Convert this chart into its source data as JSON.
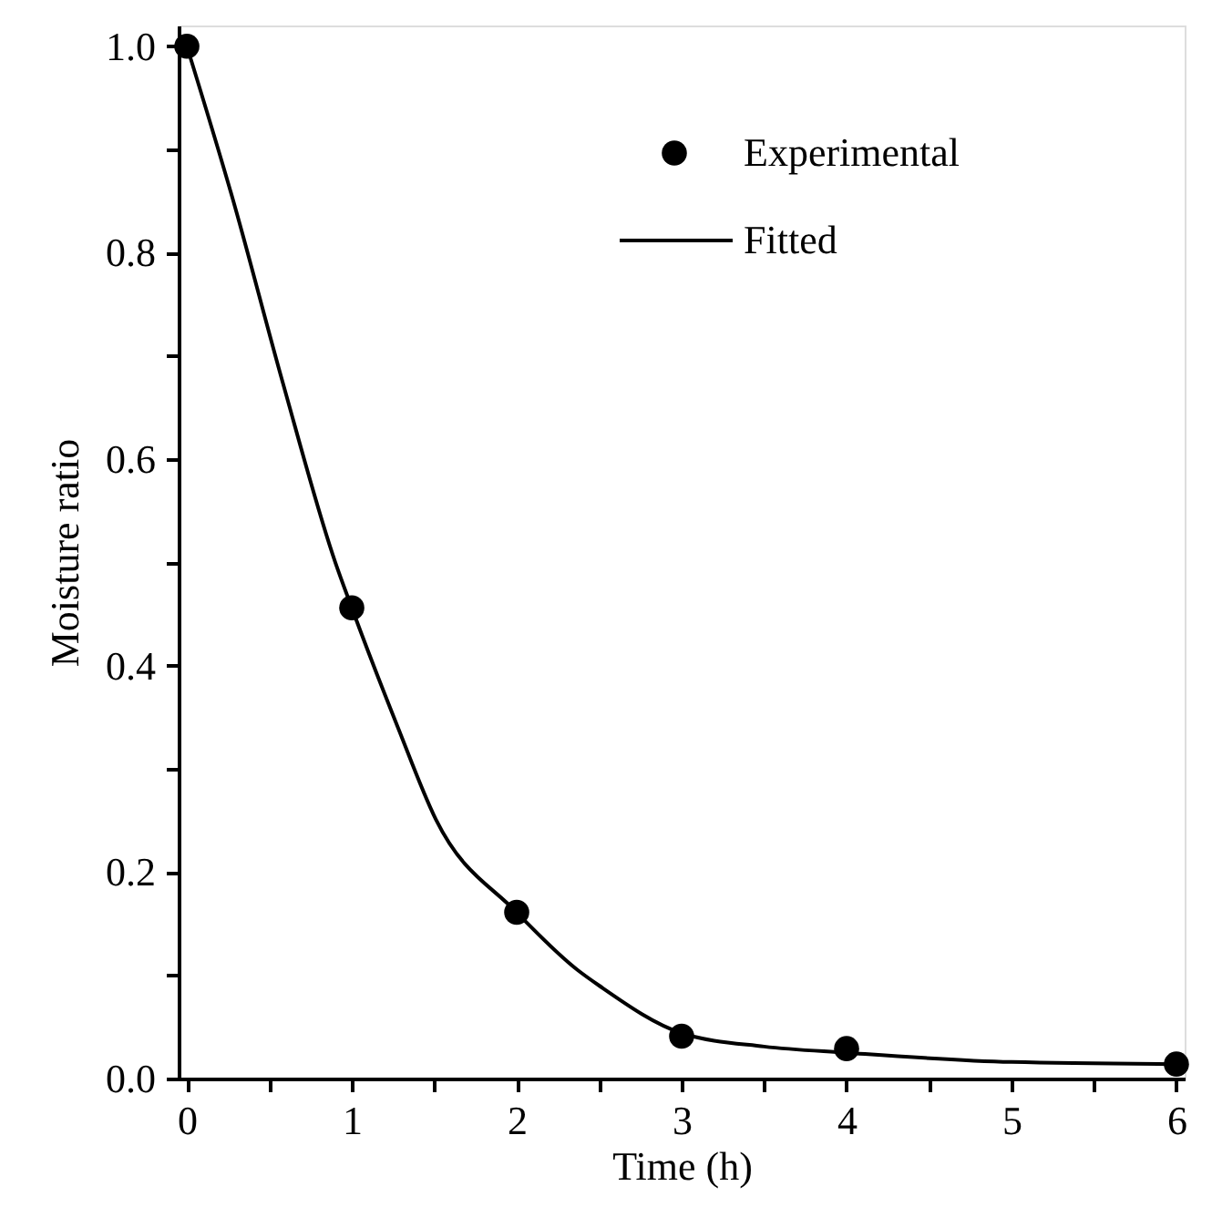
{
  "chart_data": {
    "type": "scatter",
    "xlabel": "Time (h)",
    "ylabel": "Moisture ratio",
    "xlim": [
      -0.05,
      6.05
    ],
    "ylim": [
      0,
      1.02
    ],
    "xticks": [
      0,
      {
        "value": 0.5,
        "label": null
      },
      1,
      {
        "value": 1.5,
        "label": null
      },
      2,
      {
        "value": 2.5,
        "label": null
      },
      3,
      {
        "value": 3.5,
        "label": null
      },
      4,
      {
        "value": 4.5,
        "label": null
      },
      5,
      {
        "value": 5.5,
        "label": null
      },
      6
    ],
    "yticks": [
      {
        "value": 0,
        "label": "0.0"
      },
      {
        "value": 0.1,
        "label": null
      },
      0.2,
      {
        "value": 0.3,
        "label": null
      },
      0.4,
      {
        "value": 0.5,
        "label": null
      },
      0.6,
      {
        "value": 0.7,
        "label": null
      },
      0.8,
      {
        "value": 0.9,
        "label": null
      },
      {
        "value": 1,
        "label": "1.0"
      }
    ],
    "grid": false,
    "legend": "top right",
    "series": [
      {
        "name": "Experimental",
        "marker": "circle",
        "color": "#000000",
        "x": [
          0,
          1,
          2,
          3,
          4,
          6
        ],
        "values": [
          1.0,
          0.456,
          0.161,
          0.041,
          0.029,
          0.014
        ]
      },
      {
        "name": "Fitted",
        "type": "line",
        "line_style": "solid",
        "color": "#000000",
        "x": [
          0,
          0.28,
          0.58,
          0.9,
          1,
          1.28,
          1.51,
          2,
          2.37,
          2.5,
          3,
          3.5,
          4,
          5,
          6
        ],
        "values": [
          1.0,
          0.851,
          0.675,
          0.5,
          0.456,
          0.34,
          0.251,
          0.161,
          0.105,
          0.09,
          0.044,
          0.031,
          0.025,
          0.016,
          0.014
        ]
      }
    ]
  }
}
